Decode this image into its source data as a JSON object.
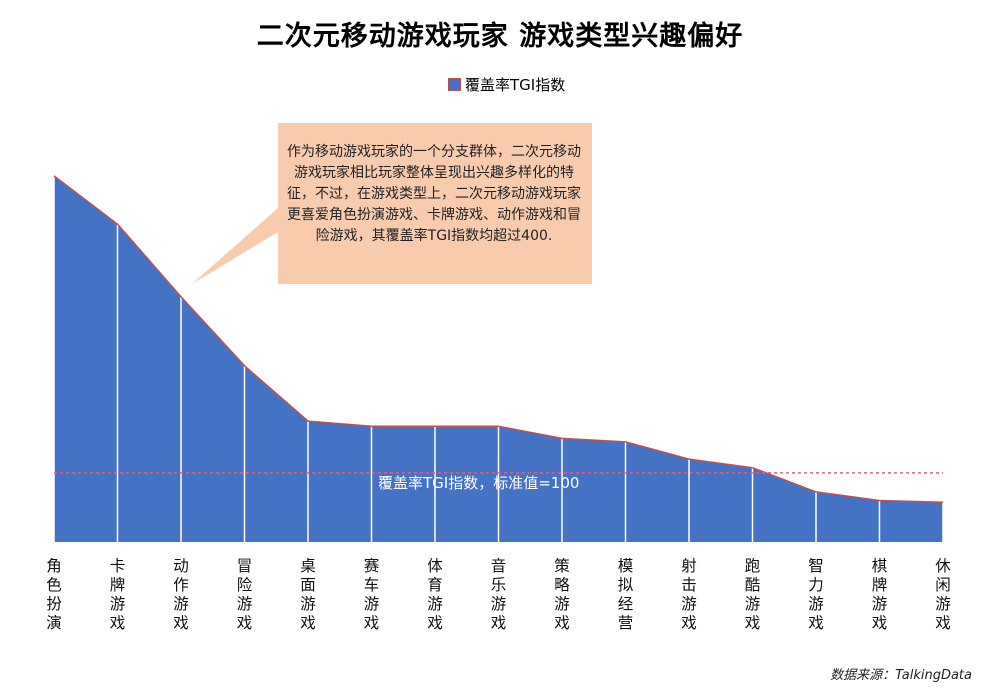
{
  "title": "二次元移动游戏玩家  游戏类型兴趣偏好",
  "legend_label": "覆盖率TGI指数",
  "callout": "作为移动游戏玩家的一个分支群体，二次元移动游戏玩家相比玩家整体呈现出兴趣多样化的特征，不过，在游戏类型上，二次元移动游戏玩家更喜爱角色扮演游戏、卡牌游戏、动作游戏和冒险游戏，其覆盖率TGI指数均超过400.",
  "baseline_label": "覆盖率TGI指数，标准值=100",
  "source": "数据来源：TalkingData",
  "colors": {
    "area": "#4472c4",
    "line": "#c0504d",
    "callout_bg": "#f8cbad"
  },
  "chart_data": {
    "type": "area",
    "title": "二次元移动游戏玩家  游戏类型兴趣偏好",
    "categories": [
      "角色扮演",
      "卡牌游戏",
      "动作游戏",
      "冒险游戏",
      "桌面游戏",
      "赛车游戏",
      "体育游戏",
      "音乐游戏",
      "策略游戏",
      "模拟经营",
      "射击游戏",
      "跑酷游戏",
      "智力游戏",
      "棋牌游戏",
      "休闲游戏"
    ],
    "series": [
      {
        "name": "覆盖率TGI指数",
        "values": [
          960,
          820,
          610,
          410,
          250,
          235,
          235,
          235,
          200,
          190,
          140,
          115,
          45,
          20,
          15
        ]
      }
    ],
    "reference_line": {
      "value": 100,
      "label": "覆盖率TGI指数，标准值=100",
      "style": "dashed"
    },
    "ylim": [
      -100,
      1000
    ],
    "legend_position": "top-center",
    "grid": false
  }
}
